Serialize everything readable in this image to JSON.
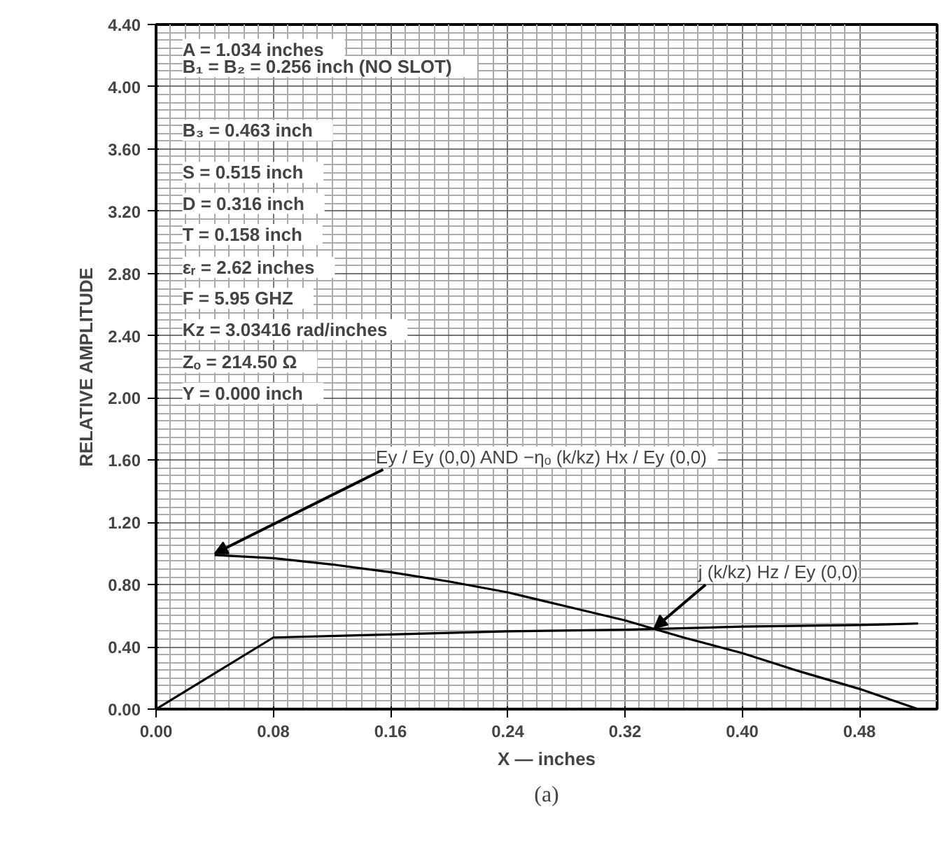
{
  "chart_data": {
    "type": "line",
    "xlabel": "X — inches",
    "ylabel": "RELATIVE AMPLITUDE",
    "xlim": [
      0,
      0.533
    ],
    "ylim": [
      0,
      4.4
    ],
    "xticks": [
      {
        "value": 0,
        "label": "0.00"
      },
      {
        "value": 0.08,
        "label": "0.08"
      },
      {
        "value": 0.16,
        "label": "0.16"
      },
      {
        "value": 0.24,
        "label": "0.24"
      },
      {
        "value": 0.32,
        "label": "0.32"
      },
      {
        "value": 0.4,
        "label": "0.40"
      },
      {
        "value": 0.48,
        "label": "0.48"
      }
    ],
    "yticks": [
      {
        "value": 0,
        "label": "0.00"
      },
      {
        "value": 0.4,
        "label": "0.40"
      },
      {
        "value": 0.8,
        "label": "0.80"
      },
      {
        "value": 1.2,
        "label": "1.20"
      },
      {
        "value": 1.6,
        "label": "1.60"
      },
      {
        "value": 2.0,
        "label": "2.00"
      },
      {
        "value": 2.4,
        "label": "2.40"
      },
      {
        "value": 2.8,
        "label": "2.80"
      },
      {
        "value": 3.2,
        "label": "3.20"
      },
      {
        "value": 3.6,
        "label": "3.60"
      },
      {
        "value": 4.0,
        "label": "4.00"
      },
      {
        "value": 4.4,
        "label": "4.40"
      }
    ],
    "grid": true,
    "line_style": "solid",
    "series": [
      {
        "color": "#000000",
        "x": [
          0.04,
          0.08,
          0.12,
          0.16,
          0.2,
          0.24,
          0.28,
          0.32,
          0.36,
          0.4,
          0.44,
          0.48,
          0.52
        ],
        "values": [
          0.99,
          0.97,
          0.93,
          0.88,
          0.82,
          0.75,
          0.66,
          0.57,
          0.46,
          0.36,
          0.24,
          0.13,
          0.0
        ]
      },
      {
        "color": "#000000",
        "x": [
          0,
          0.08,
          0.16,
          0.24,
          0.32,
          0.4,
          0.48,
          0.52
        ],
        "values": [
          0,
          0.46,
          0.48,
          0.5,
          0.51,
          0.53,
          0.54,
          0.55
        ]
      }
    ],
    "annotations": [
      "A   =   1.034 inches",
      "B₁   =   B₂ = 0.256 inch  (NO SLOT)",
      "B₃   =   0.463 inch",
      "S   =   0.515 inch",
      "D   =   0.316 inch",
      "T   =   0.158 inch",
      "εᵣ   =   2.62 inches",
      "F   =   5.95 GHZ",
      "Kz   =   3.03416 rad/inches",
      "Zₒ   =   214.50 Ω",
      "Y   =   0.000 inch",
      {
        "text": "Ey / Ey (0,0)  AND  −ηₒ (k/kz) Hx / Ey (0,0)",
        "x": 0.04,
        "y": 1.0
      },
      {
        "text": "j (k/kz) Hz / Ey (0,0)",
        "x": 0.34,
        "y": 0.52
      },
      "(a)"
    ]
  }
}
